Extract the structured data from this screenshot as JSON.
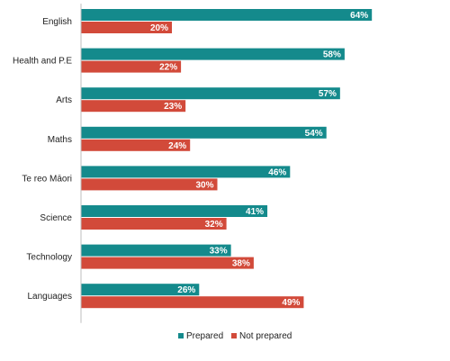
{
  "chart_data": {
    "type": "bar",
    "orientation": "horizontal",
    "categories": [
      "English",
      "Health and P.E",
      "Arts",
      "Maths",
      "Te reo Māori",
      "Science",
      "Technology",
      "Languages"
    ],
    "series": [
      {
        "name": "Prepared",
        "values": [
          64,
          58,
          57,
          54,
          46,
          41,
          33,
          26
        ],
        "color": "#148a8c"
      },
      {
        "name": "Not prepared",
        "values": [
          20,
          22,
          23,
          24,
          30,
          32,
          38,
          49
        ],
        "color": "#d24a3a"
      }
    ],
    "value_suffix": "%",
    "xlim": [
      0,
      100
    ],
    "grid": false,
    "legend": "bottom-center"
  }
}
